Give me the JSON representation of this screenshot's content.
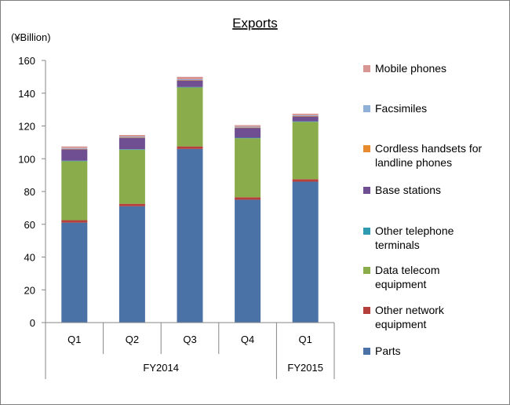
{
  "chart_data": {
    "type": "bar",
    "stacked": true,
    "title": "Exports",
    "ylabel": "(¥Billion)",
    "xlabel": "",
    "ylim": [
      0,
      160
    ],
    "yticks": [
      0,
      20,
      40,
      60,
      80,
      100,
      120,
      140,
      160
    ],
    "grid": false,
    "legend_position": "right",
    "categories": [
      "Q1",
      "Q2",
      "Q3",
      "Q4",
      "Q1"
    ],
    "category_groups": [
      {
        "label": "FY2014",
        "span": 4
      },
      {
        "label": "FY2015",
        "span": 1
      }
    ],
    "series": [
      {
        "name": "Parts",
        "color": "#4a72a6",
        "values": [
          61,
          71,
          106,
          75,
          86
        ]
      },
      {
        "name": "Other network equipment",
        "color": "#b5403b",
        "values": [
          1.5,
          1.5,
          1.5,
          1.5,
          1.5
        ]
      },
      {
        "name": "Data telecom equipment",
        "color": "#8aac4a",
        "values": [
          36,
          33,
          36,
          36,
          35
        ]
      },
      {
        "name": "Other telephone terminals",
        "color": "#2f9bb0",
        "values": [
          0.3,
          0.3,
          0.3,
          0.3,
          0.3
        ]
      },
      {
        "name": "Base stations",
        "color": "#6f4f91",
        "values": [
          7,
          7,
          4,
          6,
          3
        ]
      },
      {
        "name": "Cordless handsets for landline phones",
        "color": "#e88a2e",
        "values": [
          0.2,
          0.2,
          0.2,
          0.2,
          0.2
        ]
      },
      {
        "name": "Facsimiles",
        "color": "#8fb1d8",
        "values": [
          0.5,
          0.5,
          0.5,
          0.5,
          0.5
        ]
      },
      {
        "name": "Mobile phones",
        "color": "#d99593",
        "values": [
          1,
          1,
          1.5,
          1,
          1
        ]
      }
    ]
  }
}
